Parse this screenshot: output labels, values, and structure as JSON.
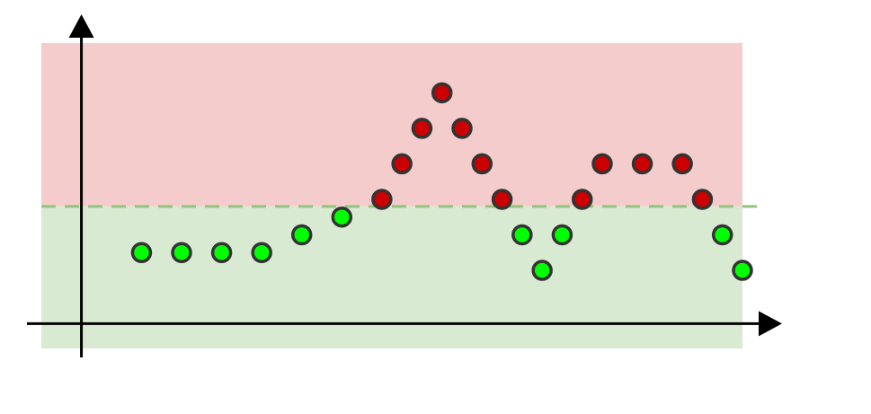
{
  "chart_data": {
    "type": "scatter",
    "title": "",
    "xlabel": "",
    "ylabel": "",
    "grid": false,
    "legend": "none",
    "xlim": [
      -2,
      33
    ],
    "ylim": [
      -0.7,
      7.9
    ],
    "threshold": 3.3,
    "zones": [
      {
        "name": "",
        "from": 3.3,
        "to": 7.9,
        "color": "#f4cccc"
      },
      {
        "name": "",
        "from": -0.7,
        "to": 3.3,
        "color": "#d9ead3"
      }
    ],
    "threshold_color": "#93c47d",
    "axis_color": "#000000",
    "point_colors": {
      "below": "#00ff00",
      "above": "#cc0000",
      "outline": "#333333"
    },
    "series": [
      {
        "points": [
          {
            "x": 3,
            "y": 2
          },
          {
            "x": 5,
            "y": 2
          },
          {
            "x": 7,
            "y": 2
          },
          {
            "x": 9,
            "y": 2
          },
          {
            "x": 11,
            "y": 2.5
          },
          {
            "x": 13,
            "y": 3
          },
          {
            "x": 15,
            "y": 3.5
          },
          {
            "x": 16,
            "y": 4.5
          },
          {
            "x": 17,
            "y": 5.5
          },
          {
            "x": 18,
            "y": 6.5
          },
          {
            "x": 19,
            "y": 5.5
          },
          {
            "x": 20,
            "y": 4.5
          },
          {
            "x": 21,
            "y": 3.5
          },
          {
            "x": 22,
            "y": 2.5
          },
          {
            "x": 23,
            "y": 1.5
          },
          {
            "x": 24,
            "y": 2.5
          },
          {
            "x": 25,
            "y": 3.5
          },
          {
            "x": 26,
            "y": 4.5
          },
          {
            "x": 28,
            "y": 4.5
          },
          {
            "x": 30,
            "y": 4.5
          },
          {
            "x": 31,
            "y": 3.5
          },
          {
            "x": 32,
            "y": 2.5
          },
          {
            "x": 33,
            "y": 1.5
          }
        ]
      }
    ]
  }
}
